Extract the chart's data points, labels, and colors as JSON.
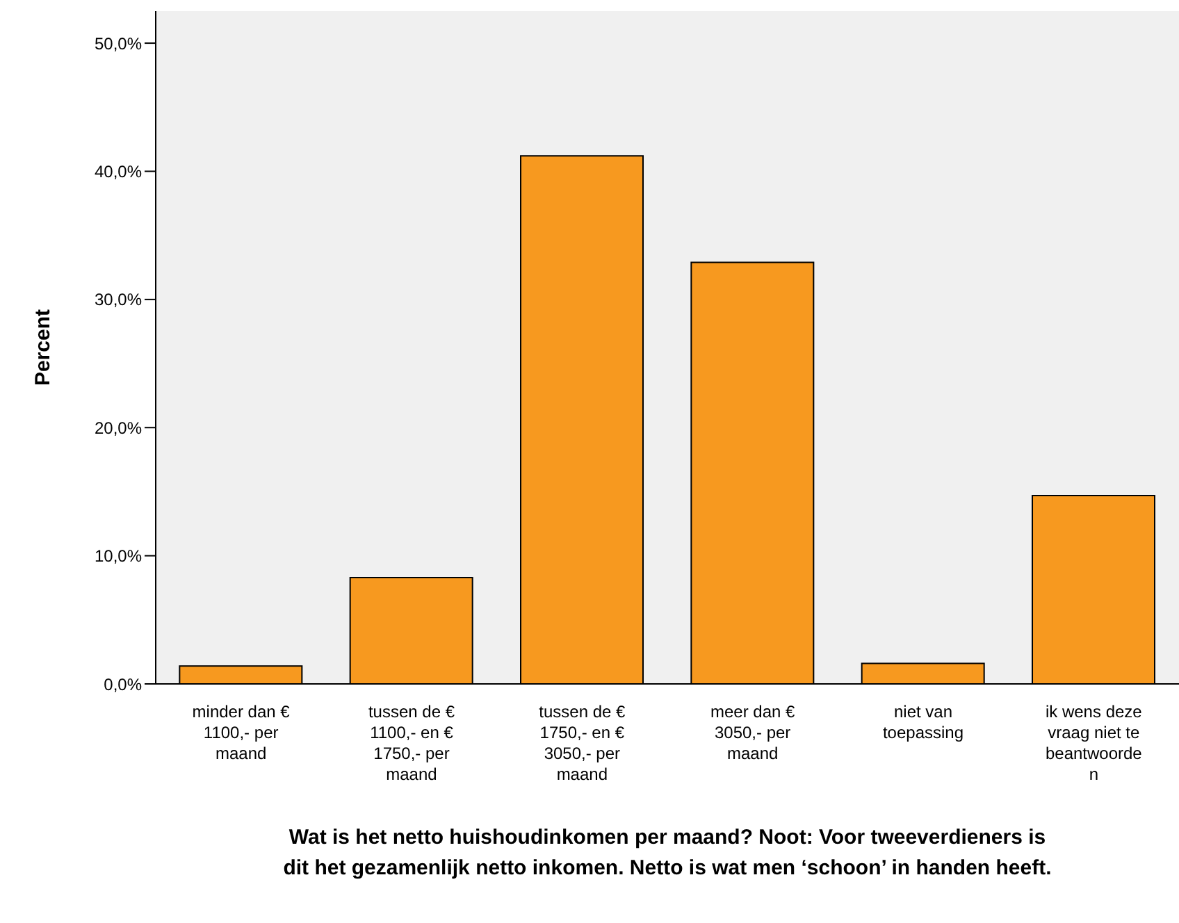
{
  "chart_data": {
    "type": "bar",
    "xlabel": "Wat is het netto huishoudinkomen per maand? Noot: Voor tweeverdieners is dit het gezamenlijk netto inkomen. Netto is wat men ‘schoon’ in handen heeft.",
    "ylabel": "Percent",
    "categories": [
      "minder dan € 1100,- per maand",
      "tussen de € 1100,- en € 1750,- per maand",
      "tussen de € 1750,- en € 3050,- per maand",
      "meer dan € 3050,- per maand",
      "niet van toepassing",
      "ik wens deze vraag niet te beantwoorden"
    ],
    "values": [
      1.4,
      8.3,
      41.2,
      32.9,
      1.6,
      14.7
    ],
    "color": "#f7991f",
    "ylim": [
      0,
      52.5
    ],
    "yticks": [
      {
        "value": 0,
        "label": "0,0%"
      },
      {
        "value": 10,
        "label": "10,0%"
      },
      {
        "value": 20,
        "label": "20,0%"
      },
      {
        "value": 30,
        "label": "30,0%"
      },
      {
        "value": 40,
        "label": "40,0%"
      },
      {
        "value": 50,
        "label": "50,0%"
      }
    ],
    "grid": false
  }
}
